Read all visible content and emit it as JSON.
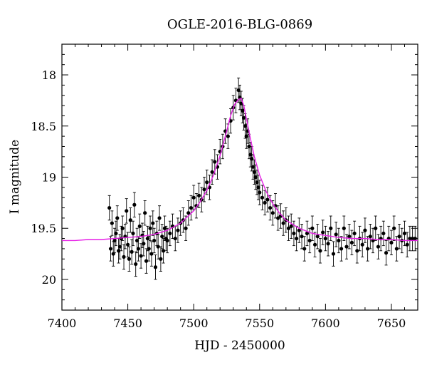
{
  "chart_data": {
    "type": "scatter",
    "title": "OGLE-2016-BLG-0869",
    "xlabel": "HJD - 2450000",
    "ylabel": "I magnitude",
    "xlim": [
      7400,
      7670
    ],
    "ylim": [
      17.7,
      20.3
    ],
    "y_inverted": true,
    "x_ticks": [
      7400,
      7450,
      7500,
      7550,
      7600,
      7650
    ],
    "x_minor_step": 10,
    "y_ticks": [
      18,
      18.5,
      19,
      19.5,
      20
    ],
    "y_tick_labels": [
      "18",
      "18.5",
      "19",
      "19.5",
      "20"
    ],
    "y_minor_step": 0.1,
    "grid": false,
    "colors": {
      "points": "#000000",
      "model": "#e61ee6"
    },
    "model": {
      "name": "",
      "x": [
        7400,
        7410,
        7420,
        7430,
        7440,
        7450,
        7460,
        7470,
        7480,
        7490,
        7500,
        7505,
        7510,
        7515,
        7520,
        7525,
        7528,
        7531,
        7534,
        7536,
        7538,
        7540,
        7543,
        7546,
        7550,
        7555,
        7560,
        7565,
        7570,
        7580,
        7590,
        7600,
        7610,
        7620,
        7630,
        7640,
        7650,
        7660,
        7670
      ],
      "y": [
        19.62,
        19.62,
        19.61,
        19.61,
        19.6,
        19.59,
        19.58,
        19.56,
        19.52,
        19.45,
        19.33,
        19.24,
        19.13,
        18.98,
        18.79,
        18.55,
        18.4,
        18.29,
        18.24,
        18.23,
        18.3,
        18.43,
        18.62,
        18.8,
        18.98,
        19.14,
        19.26,
        19.35,
        19.42,
        19.5,
        19.55,
        19.57,
        19.59,
        19.6,
        19.6,
        19.61,
        19.61,
        19.62,
        19.62
      ]
    },
    "series": [
      {
        "name": "",
        "x": [
          7436,
          7437,
          7438,
          7439,
          7440,
          7441,
          7442,
          7443,
          7444,
          7445,
          7446,
          7447,
          7448,
          7449,
          7450,
          7451,
          7452,
          7453,
          7454,
          7455,
          7456,
          7457,
          7458,
          7459,
          7460,
          7461,
          7462,
          7463,
          7464,
          7465,
          7466,
          7467,
          7468,
          7469,
          7470,
          7471,
          7472,
          7473,
          7474,
          7475,
          7476,
          7477,
          7478,
          7479,
          7480,
          7482,
          7484,
          7486,
          7488,
          7490,
          7492,
          7494,
          7496,
          7498,
          7500,
          7502,
          7504,
          7506,
          7508,
          7510,
          7512,
          7514,
          7516,
          7518,
          7520,
          7522,
          7524,
          7526,
          7528,
          7530,
          7532,
          7534,
          7535,
          7536,
          7537,
          7538,
          7539,
          7540,
          7541,
          7542,
          7543,
          7544,
          7545,
          7546,
          7547,
          7548,
          7549,
          7550,
          7552,
          7554,
          7556,
          7558,
          7560,
          7562,
          7564,
          7566,
          7568,
          7570,
          7572,
          7574,
          7576,
          7578,
          7580,
          7582,
          7584,
          7586,
          7588,
          7590,
          7592,
          7594,
          7596,
          7598,
          7600,
          7602,
          7604,
          7606,
          7608,
          7610,
          7612,
          7614,
          7616,
          7618,
          7620,
          7622,
          7624,
          7626,
          7628,
          7630,
          7632,
          7634,
          7636,
          7638,
          7640,
          7642,
          7644,
          7646,
          7648,
          7650,
          7652,
          7654,
          7656,
          7658,
          7660,
          7662,
          7664,
          7666,
          7668
        ],
        "y": [
          19.3,
          19.7,
          19.45,
          19.75,
          19.62,
          19.55,
          19.4,
          19.72,
          19.68,
          19.6,
          19.5,
          19.78,
          19.58,
          19.33,
          19.66,
          19.8,
          19.42,
          19.73,
          19.55,
          19.27,
          19.85,
          19.62,
          19.7,
          19.48,
          19.77,
          19.57,
          19.65,
          19.35,
          19.82,
          19.6,
          19.7,
          19.5,
          19.75,
          19.45,
          19.62,
          19.88,
          19.55,
          19.68,
          19.4,
          19.8,
          19.58,
          19.72,
          19.5,
          19.6,
          19.62,
          19.55,
          19.48,
          19.6,
          19.52,
          19.45,
          19.42,
          19.5,
          19.35,
          19.3,
          19.2,
          19.28,
          19.18,
          19.22,
          19.12,
          19.05,
          19.1,
          18.95,
          18.85,
          18.9,
          18.75,
          18.7,
          18.55,
          18.6,
          18.45,
          18.32,
          18.25,
          18.15,
          18.22,
          18.28,
          18.35,
          18.42,
          18.5,
          18.6,
          18.55,
          18.7,
          18.78,
          18.82,
          18.9,
          18.95,
          19.0,
          19.05,
          19.1,
          19.15,
          19.2,
          19.25,
          19.22,
          19.3,
          19.35,
          19.28,
          19.4,
          19.38,
          19.45,
          19.42,
          19.5,
          19.48,
          19.55,
          19.6,
          19.52,
          19.58,
          19.7,
          19.55,
          19.62,
          19.5,
          19.66,
          19.58,
          19.72,
          19.54,
          19.6,
          19.65,
          19.5,
          19.75,
          19.56,
          19.62,
          19.7,
          19.5,
          19.68,
          19.58,
          19.64,
          19.55,
          19.72,
          19.6,
          19.66,
          19.52,
          19.7,
          19.58,
          19.62,
          19.5,
          19.68,
          19.6,
          19.55,
          19.74,
          19.6,
          19.64,
          19.5,
          19.7,
          19.58,
          19.62,
          19.55,
          19.66,
          19.6,
          19.6,
          19.6
        ],
        "yerr": 0.12
      }
    ]
  }
}
